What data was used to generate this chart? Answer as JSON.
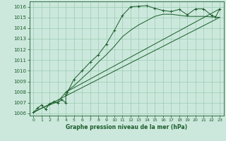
{
  "title": "Graphe pression niveau de la mer (hPa)",
  "background_color": "#cce8dc",
  "grid_color": "#99ccb3",
  "line_color": "#1a5c2a",
  "xlim": [
    -0.5,
    23.5
  ],
  "ylim": [
    1005.8,
    1016.5
  ],
  "yticks": [
    1006,
    1007,
    1008,
    1009,
    1010,
    1011,
    1012,
    1013,
    1014,
    1015,
    1016
  ],
  "xticks": [
    0,
    1,
    2,
    3,
    4,
    5,
    6,
    7,
    8,
    9,
    10,
    11,
    12,
    13,
    14,
    15,
    16,
    17,
    18,
    19,
    20,
    21,
    22,
    23
  ],
  "series1_x": [
    0,
    0.5,
    1,
    1.5,
    2,
    2.5,
    3,
    3.5,
    4,
    4,
    4.2,
    5,
    6,
    7,
    8,
    9,
    10,
    11,
    12,
    13,
    14,
    15,
    16,
    17,
    18,
    19,
    20,
    21,
    22,
    22.5,
    23
  ],
  "series1_y": [
    1006.1,
    1006.5,
    1006.8,
    1006.4,
    1006.9,
    1007.1,
    1007.0,
    1007.3,
    1007.0,
    1007.8,
    1008.0,
    1009.2,
    1010.0,
    1010.8,
    1011.5,
    1012.5,
    1013.8,
    1015.2,
    1016.0,
    1016.05,
    1016.1,
    1015.85,
    1015.65,
    1015.55,
    1015.75,
    1015.25,
    1015.8,
    1015.8,
    1015.2,
    1015.05,
    1015.8
  ],
  "series2_x": [
    0,
    1,
    2,
    3,
    4,
    5,
    6,
    7,
    8,
    9,
    10,
    11,
    12,
    13,
    14,
    15,
    16,
    17,
    18,
    19,
    20,
    21,
    22,
    23
  ],
  "series2_y": [
    1006.1,
    1006.5,
    1006.8,
    1007.1,
    1008.0,
    1008.6,
    1009.3,
    1010.0,
    1010.8,
    1011.5,
    1012.3,
    1013.2,
    1013.8,
    1014.3,
    1014.7,
    1015.1,
    1015.3,
    1015.3,
    1015.2,
    1015.1,
    1015.1,
    1015.1,
    1015.05,
    1015.0
  ],
  "line1_x": [
    0,
    23
  ],
  "line1_y": [
    1006.1,
    1015.0
  ],
  "line2_x": [
    4,
    23
  ],
  "line2_y": [
    1008.0,
    1015.8
  ],
  "marker_x": [
    0,
    0.5,
    1,
    1.5,
    2,
    2.5,
    3,
    3.5,
    4,
    5,
    6,
    7,
    8,
    9,
    10,
    11,
    12,
    13,
    14,
    15,
    16,
    17,
    18,
    19,
    20,
    21,
    22,
    22.5,
    23
  ],
  "marker_y": [
    1006.1,
    1006.5,
    1006.8,
    1006.4,
    1006.9,
    1007.1,
    1007.0,
    1007.3,
    1007.0,
    1009.2,
    1010.0,
    1010.8,
    1011.5,
    1012.5,
    1013.8,
    1015.2,
    1016.0,
    1016.05,
    1016.1,
    1015.85,
    1015.65,
    1015.55,
    1015.75,
    1015.25,
    1015.8,
    1015.8,
    1015.2,
    1015.05,
    1015.8
  ]
}
